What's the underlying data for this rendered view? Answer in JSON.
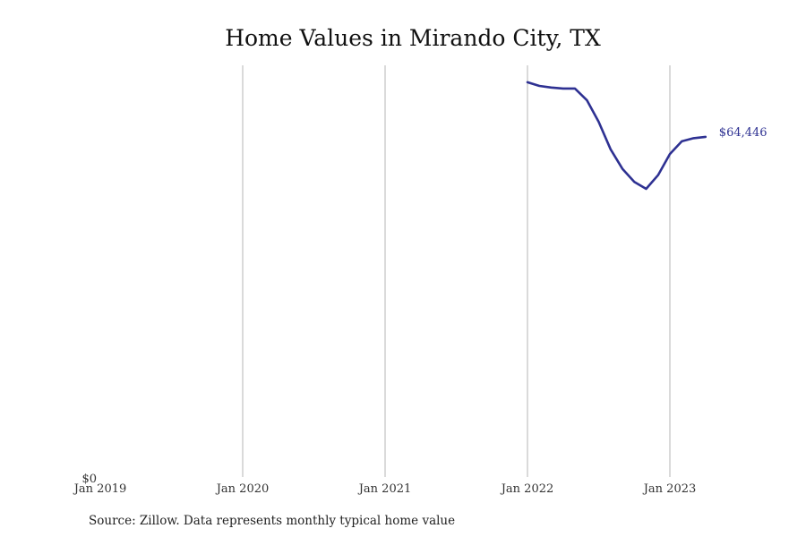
{
  "chart_data": {
    "type": "line",
    "title": "Home Values in Mirando City, TX",
    "xlabel": "",
    "ylabel": "",
    "x_ticks": [
      "Jan 2019",
      "Jan 2020",
      "Jan 2021",
      "Jan 2022",
      "Jan 2023"
    ],
    "y_ticks": [
      "$0"
    ],
    "ylim": [
      0,
      78000
    ],
    "grid": "vertical",
    "line_color": "#2e3192",
    "end_label": "$64,446",
    "series": [
      {
        "values": [
          {
            "x": "2022-01",
            "y": 74800
          },
          {
            "x": "2022-02",
            "y": 74100
          },
          {
            "x": "2022-03",
            "y": 73800
          },
          {
            "x": "2022-04",
            "y": 73600
          },
          {
            "x": "2022-05",
            "y": 73600
          },
          {
            "x": "2022-06",
            "y": 71400
          },
          {
            "x": "2022-07",
            "y": 67300
          },
          {
            "x": "2022-08",
            "y": 62100
          },
          {
            "x": "2022-09",
            "y": 58400
          },
          {
            "x": "2022-10",
            "y": 55900
          },
          {
            "x": "2022-11",
            "y": 54600
          },
          {
            "x": "2022-12",
            "y": 57200
          },
          {
            "x": "2023-01",
            "y": 61200
          },
          {
            "x": "2023-02",
            "y": 63600
          },
          {
            "x": "2023-03",
            "y": 64200
          },
          {
            "x": "2023-04",
            "y": 64446
          }
        ]
      }
    ]
  },
  "footer": {
    "source": "Source: Zillow. Data represents monthly typical home value"
  }
}
